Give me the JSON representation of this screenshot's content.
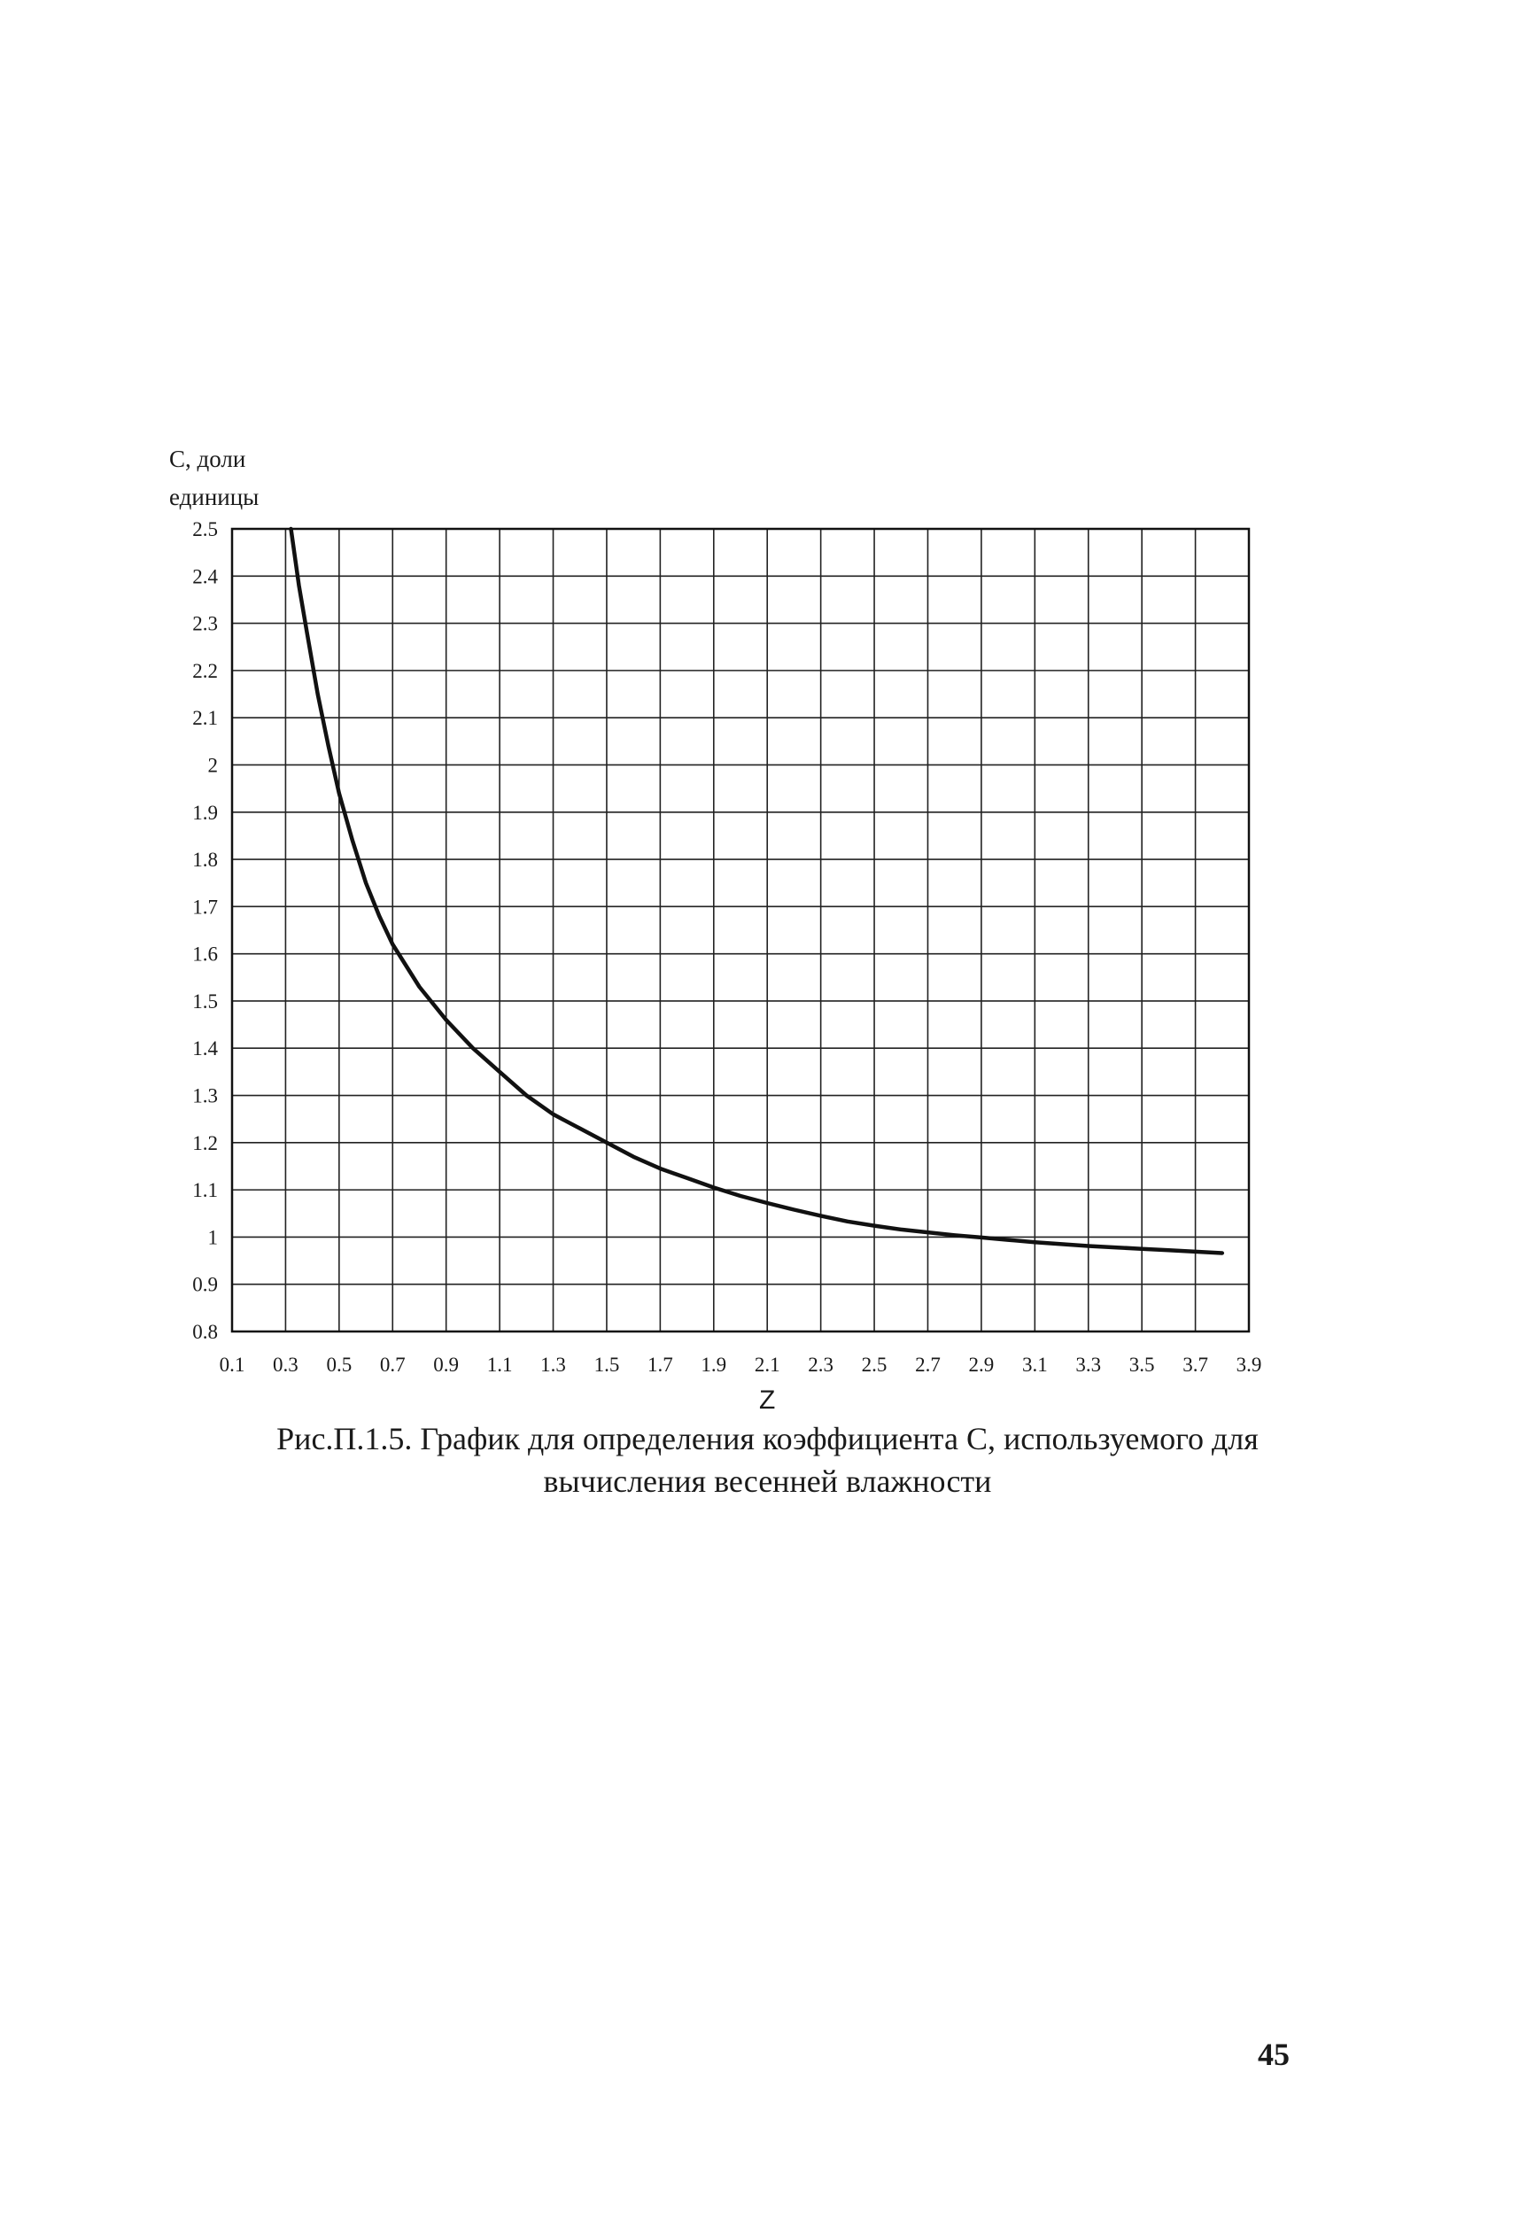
{
  "chart_data": {
    "type": "line",
    "ylabel_lines": [
      "С, доли",
      "единицы"
    ],
    "xlabel": "Z",
    "x_ticks": [
      "0.1",
      "0.3",
      "0.5",
      "0.7",
      "0.9",
      "1.1",
      "1.3",
      "1.5",
      "1.7",
      "1.9",
      "2.1",
      "2.3",
      "2.5",
      "2.7",
      "2.9",
      "3.1",
      "3.3",
      "3.5",
      "3.7",
      "3.9"
    ],
    "y_ticks": [
      "0.8",
      "0.9",
      "1",
      "1.1",
      "1.2",
      "1.3",
      "1.4",
      "1.5",
      "1.6",
      "1.7",
      "1.8",
      "1.9",
      "2",
      "2.1",
      "2.2",
      "2.3",
      "2.4",
      "2.5"
    ],
    "xlim": [
      0.1,
      3.9
    ],
    "ylim": [
      0.8,
      2.5
    ],
    "grid": true,
    "legend": "none",
    "series": [
      {
        "x": [
          0.32,
          0.35,
          0.38,
          0.42,
          0.46,
          0.5,
          0.55,
          0.6,
          0.65,
          0.7,
          0.8,
          0.9,
          1.0,
          1.1,
          1.2,
          1.3,
          1.4,
          1.5,
          1.6,
          1.7,
          1.8,
          1.9,
          2.0,
          2.1,
          2.2,
          2.3,
          2.4,
          2.5,
          2.6,
          2.7,
          2.8,
          2.9,
          3.0,
          3.1,
          3.2,
          3.3,
          3.4,
          3.5,
          3.6,
          3.7,
          3.8
        ],
        "y": [
          2.5,
          2.38,
          2.28,
          2.15,
          2.04,
          1.94,
          1.84,
          1.75,
          1.68,
          1.62,
          1.53,
          1.46,
          1.4,
          1.35,
          1.3,
          1.26,
          1.23,
          1.2,
          1.17,
          1.145,
          1.125,
          1.105,
          1.087,
          1.072,
          1.058,
          1.045,
          1.033,
          1.024,
          1.016,
          1.01,
          1.004,
          0.999,
          0.994,
          0.989,
          0.985,
          0.981,
          0.978,
          0.975,
          0.972,
          0.969,
          0.966
        ]
      }
    ],
    "colors": {
      "line": "#111111",
      "grid": "#222222"
    }
  },
  "caption": {
    "line1": "Рис.П.1.5. График для определения коэффициента С, используемого для",
    "line2": "вычисления весенней влажности"
  },
  "page_number": "45"
}
